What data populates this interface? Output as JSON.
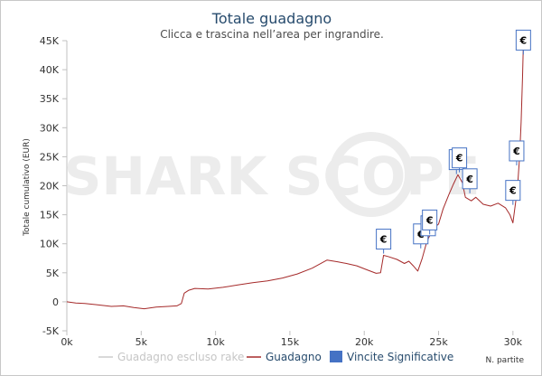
{
  "chart_data": {
    "type": "line",
    "title": "Totale guadagno",
    "subtitle": "Clicca e trascina nell’area per ingrandire.",
    "xlabel": "N. partite",
    "ylabel": "Totale cumulativo (EUR)",
    "xlim": [
      0,
      30800
    ],
    "ylim": [
      -5000,
      45000
    ],
    "x_ticks": [
      0,
      5000,
      10000,
      15000,
      20000,
      25000,
      30000
    ],
    "x_tick_labels": [
      "0k",
      "5k",
      "10k",
      "15k",
      "20k",
      "25k",
      "30k"
    ],
    "y_ticks": [
      -5000,
      0,
      5000,
      10000,
      15000,
      20000,
      25000,
      30000,
      35000,
      40000,
      45000
    ],
    "y_tick_labels": [
      "-5K",
      "0",
      "5K",
      "10K",
      "15K",
      "20K",
      "25K",
      "30K",
      "35K",
      "40K",
      "45K"
    ],
    "grid": false,
    "legend_position": "bottom",
    "watermark": "SHARK SCOPE",
    "series": [
      {
        "name": "Guadagno escluso rake",
        "color": "#cccccc",
        "values": []
      },
      {
        "name": "Guadagno",
        "color": "#a52a2a",
        "points": [
          [
            0,
            0
          ],
          [
            600,
            -200
          ],
          [
            1200,
            -300
          ],
          [
            2000,
            -500
          ],
          [
            3000,
            -800
          ],
          [
            3800,
            -700
          ],
          [
            4500,
            -1000
          ],
          [
            5200,
            -1200
          ],
          [
            6000,
            -900
          ],
          [
            6800,
            -800
          ],
          [
            7400,
            -700
          ],
          [
            7700,
            -300
          ],
          [
            7900,
            1500
          ],
          [
            8200,
            2000
          ],
          [
            8600,
            2300
          ],
          [
            9500,
            2200
          ],
          [
            10500,
            2500
          ],
          [
            11500,
            2900
          ],
          [
            12500,
            3300
          ],
          [
            13500,
            3600
          ],
          [
            14500,
            4100
          ],
          [
            15500,
            4800
          ],
          [
            16500,
            5800
          ],
          [
            17500,
            7200
          ],
          [
            18200,
            6900
          ],
          [
            18800,
            6600
          ],
          [
            19500,
            6200
          ],
          [
            20200,
            5500
          ],
          [
            20800,
            4900
          ],
          [
            21100,
            5000
          ],
          [
            21300,
            8000
          ],
          [
            21600,
            7800
          ],
          [
            22200,
            7300
          ],
          [
            22700,
            6600
          ],
          [
            23000,
            7000
          ],
          [
            23300,
            6200
          ],
          [
            23600,
            5300
          ],
          [
            23900,
            7500
          ],
          [
            24200,
            10300
          ],
          [
            24600,
            12500
          ],
          [
            25000,
            13400
          ],
          [
            25300,
            16000
          ],
          [
            25700,
            18500
          ],
          [
            26000,
            20300
          ],
          [
            26300,
            21900
          ],
          [
            26600,
            20500
          ],
          [
            26800,
            18000
          ],
          [
            27200,
            17400
          ],
          [
            27500,
            18000
          ],
          [
            28000,
            16800
          ],
          [
            28500,
            16500
          ],
          [
            29000,
            17000
          ],
          [
            29500,
            16200
          ],
          [
            29800,
            15000
          ],
          [
            30000,
            13600
          ],
          [
            30100,
            15600
          ],
          [
            30300,
            19500
          ],
          [
            30450,
            25000
          ],
          [
            30550,
            31000
          ],
          [
            30650,
            39000
          ],
          [
            30700,
            44600
          ]
        ]
      }
    ],
    "annotations": [
      {
        "label": "€",
        "x": 21300,
        "y": 10800
      },
      {
        "label": "€",
        "x": 23800,
        "y": 11700
      },
      {
        "label": "€",
        "x": 24300,
        "y": 13100
      },
      {
        "label": "€",
        "x": 24400,
        "y": 14100
      },
      {
        "label": "€",
        "x": 26200,
        "y": 24500
      },
      {
        "label": "€",
        "x": 26400,
        "y": 24800
      },
      {
        "label": "€",
        "x": 27100,
        "y": 21200
      },
      {
        "label": "€",
        "x": 30000,
        "y": 19200
      },
      {
        "label": "€",
        "x": 30250,
        "y": 26000
      },
      {
        "label": "€",
        "x": 30700,
        "y": 45100
      }
    ],
    "legend": [
      {
        "label": "Guadagno escluso rake",
        "color": "#cccccc",
        "marker": "line"
      },
      {
        "label": "Guadagno",
        "color": "#a52a2a",
        "marker": "line"
      },
      {
        "label": "Vincite Significative",
        "color": "#4572c4",
        "marker": "box"
      }
    ]
  }
}
